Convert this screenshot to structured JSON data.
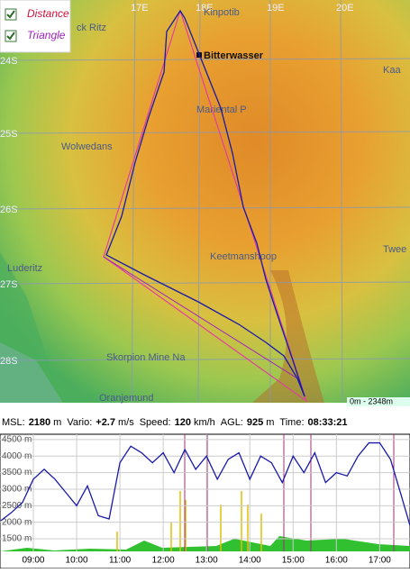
{
  "legend": [
    {
      "label": "Distance",
      "color": "#d0103a"
    },
    {
      "label": "Triangle",
      "color": "#a020c0"
    }
  ],
  "map": {
    "lon_labels": [
      "17E",
      "18E",
      "19E",
      "20E"
    ],
    "lat_labels": [
      "24S",
      "25S",
      "26S",
      "27S",
      "28S"
    ],
    "places": [
      "ck Ritz",
      "Kinpotib",
      "Bitterwasser",
      "Kaa",
      "Mariental P",
      "Wolwedans",
      "Keetmanshoop",
      "Twee",
      "Luderitz",
      "Skorpion Mine Na",
      "Oranjemund"
    ],
    "scale": "0m - 2348m"
  },
  "status": [
    {
      "label": "MSL:",
      "value": "2180",
      "unit": "m"
    },
    {
      "label": "Vario:",
      "value": "+2.7",
      "unit": "m/s"
    },
    {
      "label": "Speed:",
      "value": "120",
      "unit": "km/h"
    },
    {
      "label": "AGL:",
      "value": "925",
      "unit": "m"
    },
    {
      "label": "Time:",
      "value": "08:33:21"
    }
  ],
  "chart_data": {
    "type": "line",
    "xlim": [
      8.23,
      17.7
    ],
    "ylim": [
      1120,
      4660
    ],
    "xticks": [
      {
        "value": 9,
        "label": "09:00"
      },
      {
        "value": 10,
        "label": "10:00"
      },
      {
        "value": 11,
        "label": "11:00"
      },
      {
        "value": 12,
        "label": "12:00"
      },
      {
        "value": 13,
        "label": "13:00"
      },
      {
        "value": 14,
        "label": "14:00"
      },
      {
        "value": 15,
        "label": "15:00"
      },
      {
        "value": 16,
        "label": "16:00"
      },
      {
        "value": 17,
        "label": "17:00"
      }
    ],
    "yticks": [
      {
        "value": 1500,
        "label": "1500 m"
      },
      {
        "value": 2000,
        "label": "2000 m"
      },
      {
        "value": 2500,
        "label": "2500 m"
      },
      {
        "value": 3000,
        "label": "3000 m"
      },
      {
        "value": 3500,
        "label": "3500 m"
      },
      {
        "value": 4000,
        "label": "4000 m"
      },
      {
        "value": 4500,
        "label": "4500 m"
      }
    ],
    "x": [
      8.25,
      8.5,
      8.75,
      9.0,
      9.25,
      9.5,
      9.75,
      10.0,
      10.25,
      10.5,
      10.75,
      11.0,
      11.25,
      11.5,
      11.75,
      12.0,
      12.25,
      12.5,
      12.75,
      13.0,
      13.25,
      13.5,
      13.75,
      14.0,
      14.25,
      14.5,
      14.75,
      15.0,
      15.25,
      15.5,
      15.75,
      16.0,
      16.25,
      16.5,
      16.75,
      17.0,
      17.25,
      17.5,
      17.7
    ],
    "series": [
      {
        "color": "#1a1aa8",
        "values": [
          2050,
          2300,
          2600,
          3300,
          3600,
          3300,
          2900,
          2500,
          3100,
          2200,
          2100,
          3800,
          4300,
          4100,
          3800,
          4100,
          3500,
          4200,
          3600,
          4000,
          3300,
          3900,
          4100,
          3300,
          4000,
          3800,
          3200,
          4000,
          3500,
          4100,
          3200,
          3500,
          3400,
          4000,
          4400,
          4400,
          3900,
          2800,
          1900
        ]
      }
    ]
  }
}
